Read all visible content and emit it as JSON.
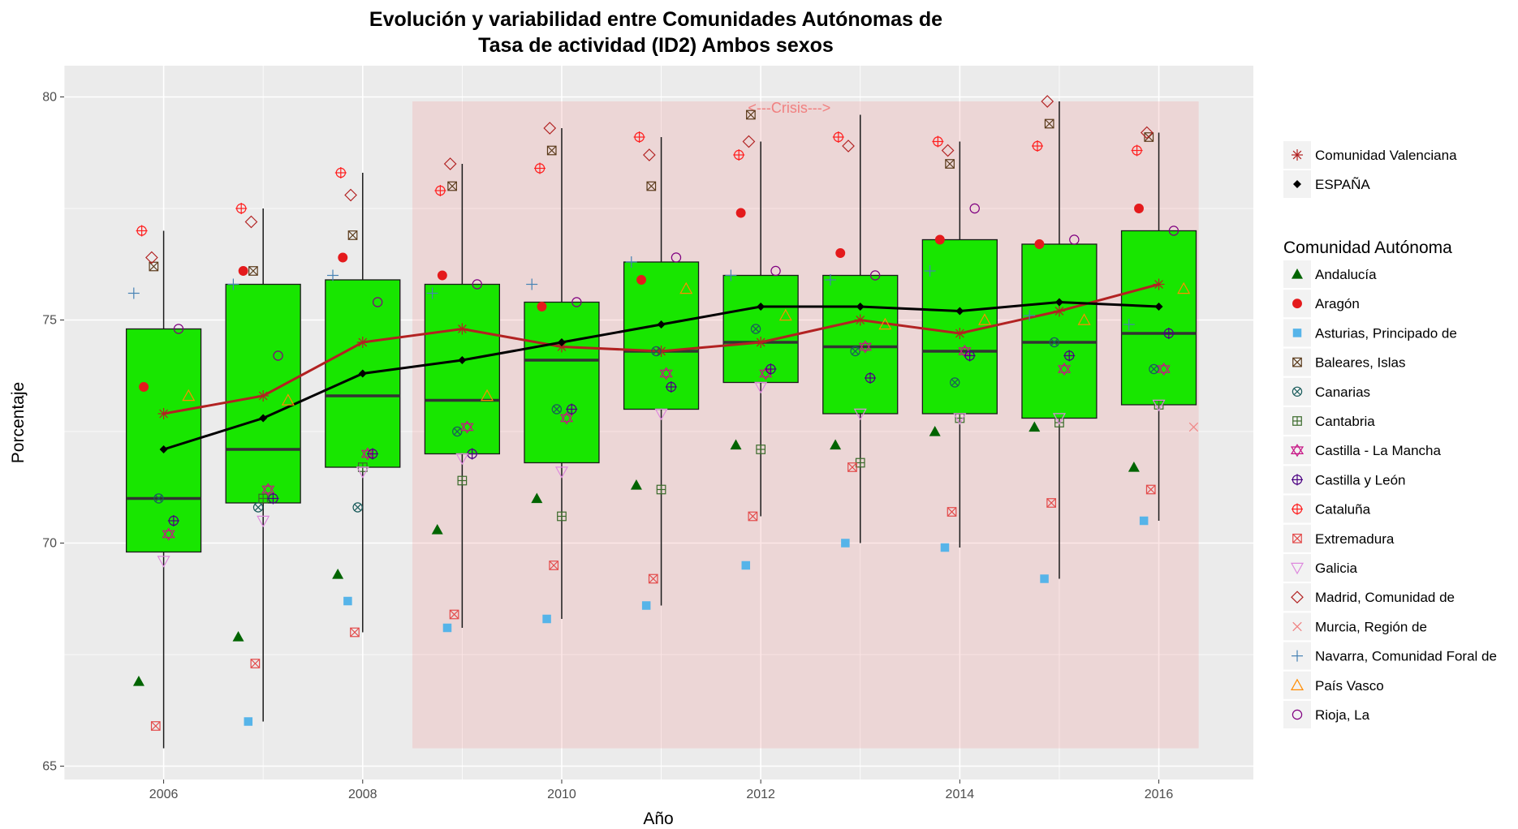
{
  "chart_data": {
    "type": "box",
    "title": "Evolución y variabilidad entre Comunidades Autónomas de",
    "subtitle": "Tasa de actividad (ID2) Ambos sexos",
    "xlabel": "Año",
    "ylabel": "Porcentaje",
    "xlim": [
      2005.0,
      2016.95
    ],
    "ylim": [
      64.7,
      80.7
    ],
    "xticks": [
      "2006",
      "2008",
      "2010",
      "2012",
      "2014",
      "2016"
    ],
    "yticks": [
      "65",
      "70",
      "75",
      "80"
    ],
    "grid": true,
    "legend_position": "right",
    "annotation": {
      "text": "<---Crisis--->",
      "x_range": [
        2008.5,
        2016.4
      ],
      "y_range": [
        65.4,
        79.9
      ],
      "color": "#f08080"
    },
    "years": [
      2006,
      2007,
      2008,
      2009,
      2010,
      2011,
      2012,
      2013,
      2014,
      2015,
      2016
    ],
    "boxes": [
      {
        "year": 2006,
        "min": 65.4,
        "q1": 69.8,
        "median": 71.0,
        "q3": 74.8,
        "max": 77.0
      },
      {
        "year": 2007,
        "min": 66.0,
        "q1": 70.9,
        "median": 72.1,
        "q3": 75.8,
        "max": 77.5
      },
      {
        "year": 2008,
        "min": 68.0,
        "q1": 71.7,
        "median": 73.3,
        "q3": 75.9,
        "max": 78.3
      },
      {
        "year": 2009,
        "min": 68.1,
        "q1": 72.0,
        "median": 73.2,
        "q3": 75.8,
        "max": 78.5
      },
      {
        "year": 2010,
        "min": 68.3,
        "q1": 71.8,
        "median": 74.1,
        "q3": 75.4,
        "max": 79.3
      },
      {
        "year": 2011,
        "min": 68.6,
        "q1": 73.0,
        "median": 74.3,
        "q3": 76.3,
        "max": 79.1
      },
      {
        "year": 2012,
        "min": 70.6,
        "q1": 73.6,
        "median": 74.5,
        "q3": 76.0,
        "max": 79.0
      },
      {
        "year": 2013,
        "min": 70.0,
        "q1": 72.9,
        "median": 74.4,
        "q3": 76.0,
        "max": 79.6
      },
      {
        "year": 2014,
        "min": 69.9,
        "q1": 72.9,
        "median": 74.3,
        "q3": 76.8,
        "max": 79.0
      },
      {
        "year": 2015,
        "min": 69.2,
        "q1": 72.8,
        "median": 74.5,
        "q3": 76.7,
        "max": 79.9
      },
      {
        "year": 2016,
        "min": 70.5,
        "q1": 73.1,
        "median": 74.7,
        "q3": 77.0,
        "max": 79.2
      }
    ],
    "box_fill": "#18e600",
    "lines": [
      {
        "name": "Comunidad Valenciana",
        "color": "#b22222",
        "values": [
          72.9,
          73.3,
          74.5,
          74.8,
          74.4,
          74.3,
          74.5,
          75.0,
          74.7,
          75.2,
          75.8
        ]
      },
      {
        "name": "ESPAÑA",
        "color": "#000000",
        "values": [
          72.1,
          72.8,
          73.8,
          74.1,
          74.5,
          74.9,
          75.3,
          75.3,
          75.2,
          75.4,
          75.3
        ]
      }
    ],
    "legend_group_title": "Comunidad Autónoma",
    "series": [
      {
        "name": "Andalucía",
        "shape": "triangle-filled",
        "color": "#006400",
        "offset": -0.25,
        "values": [
          66.9,
          67.9,
          69.3,
          70.3,
          71.0,
          71.3,
          72.2,
          72.2,
          72.5,
          72.6,
          71.7
        ]
      },
      {
        "name": "Aragón",
        "shape": "circle-filled",
        "color": "#e41a1c",
        "offset": -0.2,
        "values": [
          73.5,
          76.1,
          76.4,
          76.0,
          75.3,
          75.9,
          77.4,
          76.5,
          76.8,
          76.7,
          77.5
        ]
      },
      {
        "name": "Asturias, Principado de",
        "shape": "square-filled",
        "color": "#56b4e9",
        "offset": -0.15,
        "values": [
          null,
          66.0,
          68.7,
          68.1,
          68.3,
          68.6,
          69.5,
          70.0,
          69.9,
          69.2,
          70.5
        ]
      },
      {
        "name": "Baleares, Islas",
        "shape": "square-x",
        "color": "#5a3a1a",
        "offset": -0.1,
        "values": [
          76.2,
          76.1,
          76.9,
          78.0,
          78.8,
          78.0,
          79.6,
          null,
          78.5,
          79.4,
          79.1
        ]
      },
      {
        "name": "Canarias",
        "shape": "circle-x",
        "color": "#1a5c5c",
        "offset": -0.05,
        "values": [
          71.0,
          70.8,
          70.8,
          72.5,
          73.0,
          74.3,
          74.8,
          74.3,
          73.6,
          74.5,
          73.9
        ]
      },
      {
        "name": "Cantabria",
        "shape": "square-plus",
        "color": "#3a6a2a",
        "offset": 0.0,
        "values": [
          null,
          71.0,
          71.7,
          71.4,
          70.6,
          71.2,
          72.1,
          71.8,
          72.8,
          72.7,
          73.1
        ]
      },
      {
        "name": "Castilla - La Mancha",
        "shape": "star-david",
        "color": "#c71585",
        "offset": 0.05,
        "values": [
          70.2,
          71.2,
          72.0,
          72.6,
          72.8,
          73.8,
          73.8,
          74.4,
          74.3,
          73.9,
          73.9
        ]
      },
      {
        "name": "Castilla y León",
        "shape": "circle-plus",
        "color": "#4b0082",
        "offset": 0.1,
        "values": [
          70.5,
          71.0,
          72.0,
          72.0,
          73.0,
          73.5,
          73.9,
          73.7,
          74.2,
          74.2,
          74.7
        ]
      },
      {
        "name": "Cataluña",
        "shape": "circle-plus",
        "color": "#ff2020",
        "offset": -0.22,
        "values": [
          77.0,
          77.5,
          78.3,
          77.9,
          78.4,
          79.1,
          78.7,
          79.1,
          79.0,
          78.9,
          78.8
        ]
      },
      {
        "name": "Extremadura",
        "shape": "square-x",
        "color": "#e34a4a",
        "offset": -0.08,
        "values": [
          65.9,
          67.3,
          68.0,
          68.4,
          69.5,
          69.2,
          70.6,
          71.7,
          70.7,
          70.9,
          71.2
        ]
      },
      {
        "name": "Galicia",
        "shape": "triangle-down",
        "color": "#dd88dd",
        "offset": 0.0,
        "values": [
          69.6,
          70.5,
          71.6,
          71.9,
          71.6,
          72.9,
          73.5,
          72.9,
          72.8,
          72.8,
          73.1
        ]
      },
      {
        "name": "Madrid, Comunidad de",
        "shape": "diamond",
        "color": "#b22222",
        "offset": -0.12,
        "values": [
          76.4,
          77.2,
          77.8,
          78.5,
          79.3,
          78.7,
          79.0,
          78.9,
          78.8,
          79.9,
          79.2
        ]
      },
      {
        "name": "Murcia, Región de",
        "shape": "x",
        "color": "#f08080",
        "offset": 0.35,
        "values": [
          null,
          null,
          null,
          null,
          null,
          null,
          null,
          null,
          null,
          null,
          72.6
        ]
      },
      {
        "name": "Navarra, Comunidad Foral de",
        "shape": "plus",
        "color": "#4682b4",
        "offset": -0.3,
        "values": [
          75.6,
          75.8,
          76.0,
          75.6,
          75.8,
          76.3,
          76.0,
          75.9,
          76.1,
          75.1,
          74.9
        ]
      },
      {
        "name": "País Vasco",
        "shape": "triangle-open",
        "color": "#ff8c00",
        "offset": 0.25,
        "values": [
          73.3,
          73.2,
          null,
          73.3,
          null,
          75.7,
          75.1,
          74.9,
          75.0,
          75.0,
          75.7
        ]
      },
      {
        "name": "Rioja, La",
        "shape": "circle-open",
        "color": "#800080",
        "offset": 0.15,
        "values": [
          74.8,
          74.2,
          75.4,
          75.8,
          75.4,
          76.4,
          76.1,
          76.0,
          77.5,
          76.8,
          77.0
        ]
      }
    ]
  }
}
